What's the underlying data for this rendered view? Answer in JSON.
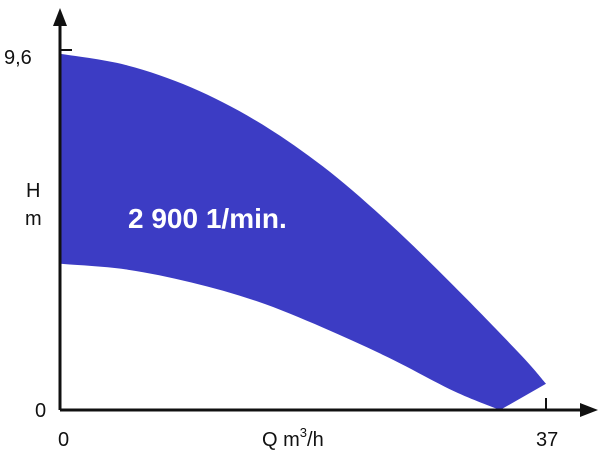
{
  "chart_data": {
    "type": "area",
    "title": "",
    "ylabel_line1": "H",
    "ylabel_line2": "m",
    "xlabel_prefix": "Q m",
    "xlabel_sup": "3",
    "xlabel_suffix": "/h",
    "xlim": [
      0,
      37
    ],
    "ylim": [
      0,
      9.6
    ],
    "x_tick_labels": [
      "0",
      "37"
    ],
    "y_tick_labels": [
      "0",
      "9,6"
    ],
    "grid": false,
    "band_label": "2 900 1/min.",
    "colors": {
      "band": "#3c3cc4",
      "axis": "#111111"
    },
    "series": [
      {
        "role": "upper",
        "x": [
          0,
          5,
          10,
          15,
          20,
          25,
          30,
          35,
          37
        ],
        "y": [
          9.5,
          9.2,
          8.6,
          7.7,
          6.5,
          5.0,
          3.3,
          1.5,
          0.7
        ]
      },
      {
        "role": "lower",
        "x": [
          0,
          5,
          10,
          15,
          20,
          25,
          30,
          33.5
        ],
        "y": [
          3.9,
          3.75,
          3.4,
          2.9,
          2.2,
          1.4,
          0.5,
          0.0
        ]
      }
    ]
  }
}
